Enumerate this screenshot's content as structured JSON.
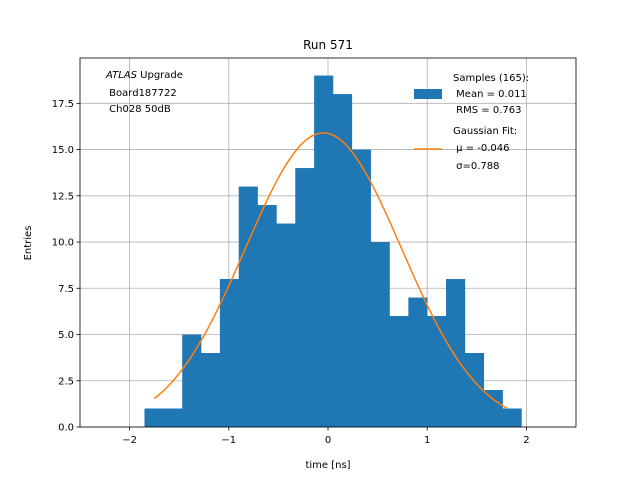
{
  "chart_data": {
    "type": "histogram",
    "title": "Run 571",
    "xlabel": "time [ns]",
    "ylabel": "Entries",
    "xlim": [
      -2.5,
      2.5
    ],
    "ylim": [
      0,
      19.95
    ],
    "grid": true,
    "x_ticks": [
      -2,
      -1,
      0,
      1,
      2
    ],
    "x_tick_labels": [
      "−2",
      "−1",
      "0",
      "1",
      "2"
    ],
    "y_ticks": [
      0,
      2.5,
      5,
      7.5,
      10,
      12.5,
      15,
      17.5
    ],
    "y_tick_labels": [
      "0.0",
      "2.5",
      "5.0",
      "7.5",
      "10.0",
      "12.5",
      "15.0",
      "17.5"
    ],
    "bar_color": "#1f77b4",
    "line_color": "#ff7f0e",
    "bins": {
      "edges": [
        -1.85,
        -1.66,
        -1.47,
        -1.28,
        -1.09,
        -0.9,
        -0.71,
        -0.52,
        -0.33,
        -0.14,
        0.05,
        0.24,
        0.43,
        0.62,
        0.81,
        1.0,
        1.19,
        1.38,
        1.57,
        1.76,
        1.95
      ],
      "counts": [
        1,
        1,
        5,
        4,
        8,
        13,
        12,
        11,
        14,
        19,
        18,
        15,
        10,
        6,
        7,
        6,
        8,
        4,
        2,
        1
      ]
    },
    "gaussian_fit": {
      "amplitude": 15.9,
      "mu": -0.046,
      "sigma": 0.788,
      "x_range": [
        -1.75,
        1.8
      ]
    },
    "legend": {
      "position": "upper right",
      "entries": [
        {
          "marker": "patch",
          "lines": [
            "Samples (165):",
            " Mean = 0.011",
            " RMS = 0.763"
          ]
        },
        {
          "marker": "line",
          "lines": [
            "Gaussian Fit:",
            " μ = -0.046",
            " σ=0.788"
          ]
        }
      ]
    },
    "annotation": {
      "italic": "ATLAS",
      "text": " Upgrade",
      "lines": [
        " Board187722",
        " Ch028 50dB"
      ]
    }
  }
}
